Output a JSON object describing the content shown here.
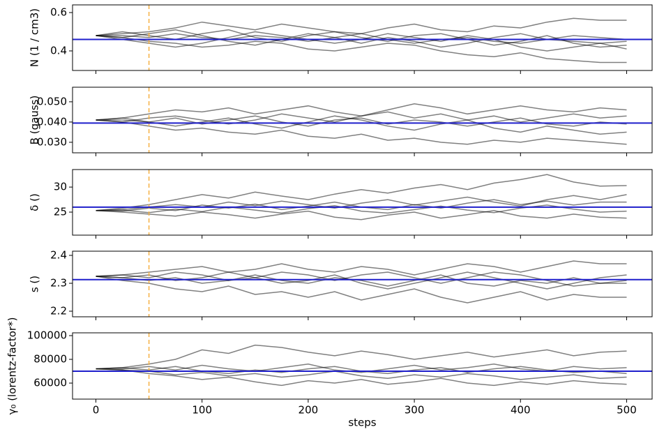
{
  "chart_data": [
    {
      "type": "line",
      "ylabel": "N (1 / cm3)",
      "x": [
        0,
        25,
        50,
        75,
        100,
        125,
        150,
        175,
        200,
        225,
        250,
        275,
        300,
        325,
        350,
        375,
        400,
        425,
        450,
        475,
        500
      ],
      "xlim": [
        -22,
        524
      ],
      "xticks": [
        0,
        100,
        200,
        300,
        400,
        500
      ],
      "xtick_labels": false,
      "ylim": [
        0.298,
        0.64
      ],
      "yticks": [
        0.4,
        0.6
      ],
      "reference_line": {
        "value": 0.46,
        "color": "#1f1fcc"
      },
      "burn_in_line": {
        "value": 50,
        "color": "#f5b041"
      },
      "series": [
        {
          "color": "#000000",
          "values": [
            0.48,
            0.49,
            0.5,
            0.52,
            0.55,
            0.53,
            0.51,
            0.54,
            0.52,
            0.5,
            0.49,
            0.52,
            0.54,
            0.51,
            0.5,
            0.53,
            0.52,
            0.55,
            0.57,
            0.56,
            0.56
          ]
        },
        {
          "color": "#000000",
          "values": [
            0.48,
            0.47,
            0.45,
            0.44,
            0.42,
            0.43,
            0.45,
            0.44,
            0.41,
            0.4,
            0.42,
            0.44,
            0.43,
            0.4,
            0.38,
            0.37,
            0.39,
            0.36,
            0.35,
            0.34,
            0.34
          ]
        },
        {
          "color": "#000000",
          "values": [
            0.48,
            0.48,
            0.47,
            0.49,
            0.47,
            0.46,
            0.48,
            0.47,
            0.45,
            0.47,
            0.49,
            0.46,
            0.44,
            0.46,
            0.47,
            0.45,
            0.44,
            0.46,
            0.45,
            0.44,
            0.45
          ]
        },
        {
          "color": "#000000",
          "values": [
            0.48,
            0.5,
            0.48,
            0.46,
            0.49,
            0.51,
            0.47,
            0.45,
            0.48,
            0.5,
            0.47,
            0.45,
            0.48,
            0.49,
            0.46,
            0.43,
            0.45,
            0.48,
            0.44,
            0.42,
            0.43
          ]
        },
        {
          "color": "#000000",
          "values": [
            0.48,
            0.47,
            0.49,
            0.51,
            0.48,
            0.45,
            0.43,
            0.46,
            0.49,
            0.47,
            0.44,
            0.47,
            0.45,
            0.42,
            0.44,
            0.47,
            0.49,
            0.46,
            0.48,
            0.47,
            0.46
          ]
        },
        {
          "color": "#000000",
          "values": [
            0.48,
            0.46,
            0.44,
            0.42,
            0.44,
            0.47,
            0.5,
            0.48,
            0.46,
            0.44,
            0.46,
            0.49,
            0.47,
            0.45,
            0.48,
            0.46,
            0.42,
            0.4,
            0.42,
            0.44,
            0.41
          ]
        }
      ]
    },
    {
      "type": "line",
      "ylabel": "B (gauss)",
      "x": [
        0,
        25,
        50,
        75,
        100,
        125,
        150,
        175,
        200,
        225,
        250,
        275,
        300,
        325,
        350,
        375,
        400,
        425,
        450,
        475,
        500
      ],
      "xlim": [
        -22,
        524
      ],
      "xticks": [
        0,
        100,
        200,
        300,
        400,
        500
      ],
      "xtick_labels": false,
      "ylim": [
        0.0248,
        0.0572
      ],
      "yticks": [
        {
          "value": 0.03,
          "label": "0.030"
        },
        {
          "value": 0.04,
          "label": "0.040"
        },
        {
          "value": 0.05,
          "label": "0.050"
        }
      ],
      "reference_line": {
        "value": 0.0395,
        "color": "#1f1fcc"
      },
      "burn_in_line": {
        "value": 50,
        "color": "#f5b041"
      },
      "series": [
        {
          "color": "#000000",
          "values": [
            0.041,
            0.042,
            0.044,
            0.046,
            0.045,
            0.047,
            0.044,
            0.046,
            0.048,
            0.045,
            0.043,
            0.046,
            0.049,
            0.047,
            0.044,
            0.046,
            0.048,
            0.046,
            0.045,
            0.047,
            0.046
          ]
        },
        {
          "color": "#000000",
          "values": [
            0.041,
            0.04,
            0.038,
            0.036,
            0.037,
            0.035,
            0.034,
            0.036,
            0.033,
            0.032,
            0.034,
            0.031,
            0.032,
            0.03,
            0.029,
            0.031,
            0.03,
            0.032,
            0.031,
            0.03,
            0.029
          ]
        },
        {
          "color": "#000000",
          "values": [
            0.041,
            0.041,
            0.04,
            0.042,
            0.039,
            0.041,
            0.043,
            0.04,
            0.038,
            0.041,
            0.042,
            0.039,
            0.041,
            0.04,
            0.038,
            0.04,
            0.042,
            0.039,
            0.038,
            0.04,
            0.039
          ]
        },
        {
          "color": "#000000",
          "values": [
            0.041,
            0.042,
            0.04,
            0.038,
            0.04,
            0.042,
            0.039,
            0.037,
            0.04,
            0.043,
            0.041,
            0.038,
            0.036,
            0.039,
            0.041,
            0.037,
            0.035,
            0.038,
            0.036,
            0.034,
            0.035
          ]
        },
        {
          "color": "#000000",
          "values": [
            0.041,
            0.04,
            0.042,
            0.043,
            0.041,
            0.039,
            0.041,
            0.044,
            0.042,
            0.04,
            0.043,
            0.045,
            0.042,
            0.044,
            0.041,
            0.043,
            0.04,
            0.042,
            0.044,
            0.042,
            0.043
          ]
        }
      ]
    },
    {
      "type": "line",
      "ylabel": "δ ()",
      "x": [
        0,
        25,
        50,
        75,
        100,
        125,
        150,
        175,
        200,
        225,
        250,
        275,
        300,
        325,
        350,
        375,
        400,
        425,
        450,
        475,
        500
      ],
      "xlim": [
        -22,
        524
      ],
      "xticks": [
        0,
        100,
        200,
        300,
        400,
        500
      ],
      "xtick_labels": false,
      "ylim": [
        20.4,
        33.5
      ],
      "yticks": [
        25,
        30
      ],
      "reference_line": {
        "value": 26,
        "color": "#1f1fcc"
      },
      "burn_in_line": {
        "value": 50,
        "color": "#f5b041"
      },
      "series": [
        {
          "color": "#000000",
          "values": [
            25.3,
            25.8,
            26.5,
            27.5,
            28.5,
            27.8,
            29,
            28.2,
            27.5,
            28.6,
            29.5,
            28.8,
            29.8,
            30.5,
            29.5,
            30.8,
            31.5,
            32.5,
            31,
            30.2,
            30.3
          ]
        },
        {
          "color": "#000000",
          "values": [
            25.3,
            25,
            24.6,
            24.2,
            25,
            24.5,
            23.8,
            24.6,
            25.2,
            24,
            23.5,
            24.4,
            25,
            23.8,
            24.5,
            25.3,
            24.2,
            23.8,
            24.6,
            24,
            23.8
          ]
        },
        {
          "color": "#000000",
          "values": [
            25.3,
            25.5,
            26,
            26.5,
            26,
            27,
            26.3,
            27.2,
            26.5,
            25.8,
            26.8,
            27.5,
            26.4,
            27.2,
            28,
            27,
            26.2,
            27.5,
            28.3,
            27.5,
            28.5
          ]
        },
        {
          "color": "#000000",
          "values": [
            25.3,
            25.2,
            25.8,
            25.3,
            26.4,
            25.8,
            26.6,
            25.5,
            26.2,
            27,
            26,
            25.5,
            26.5,
            25.8,
            26.8,
            27.5,
            26.5,
            27.2,
            26.4,
            27,
            27
          ]
        },
        {
          "color": "#000000",
          "values": [
            25.3,
            25.4,
            24.9,
            25.6,
            25.1,
            26,
            25.4,
            24.8,
            25.7,
            26.3,
            25.2,
            24.8,
            25.5,
            26.2,
            25.4,
            24.9,
            25.8,
            26.4,
            25.6,
            25,
            25.2
          ]
        }
      ]
    },
    {
      "type": "line",
      "ylabel": "s ()",
      "x": [
        0,
        25,
        50,
        75,
        100,
        125,
        150,
        175,
        200,
        225,
        250,
        275,
        300,
        325,
        350,
        375,
        400,
        425,
        450,
        475,
        500
      ],
      "xlim": [
        -22,
        524
      ],
      "xticks": [
        0,
        100,
        200,
        300,
        400,
        500
      ],
      "xtick_labels": false,
      "ylim": [
        2.18,
        2.415
      ],
      "yticks": [
        2.2,
        2.3,
        2.4
      ],
      "reference_line": {
        "value": 2.313,
        "color": "#1f1fcc"
      },
      "burn_in_line": {
        "value": 50,
        "color": "#f5b041"
      },
      "series": [
        {
          "color": "#000000",
          "values": [
            2.325,
            2.33,
            2.34,
            2.35,
            2.36,
            2.34,
            2.35,
            2.37,
            2.35,
            2.34,
            2.36,
            2.35,
            2.33,
            2.35,
            2.37,
            2.36,
            2.34,
            2.36,
            2.38,
            2.37,
            2.37
          ]
        },
        {
          "color": "#000000",
          "values": [
            2.325,
            2.31,
            2.3,
            2.28,
            2.27,
            2.29,
            2.26,
            2.27,
            2.25,
            2.27,
            2.24,
            2.26,
            2.28,
            2.25,
            2.23,
            2.25,
            2.27,
            2.24,
            2.26,
            2.25,
            2.25
          ]
        },
        {
          "color": "#000000",
          "values": [
            2.325,
            2.32,
            2.31,
            2.32,
            2.3,
            2.31,
            2.33,
            2.31,
            2.3,
            2.32,
            2.31,
            2.29,
            2.31,
            2.33,
            2.3,
            2.29,
            2.31,
            2.3,
            2.32,
            2.3,
            2.31
          ]
        },
        {
          "color": "#000000",
          "values": [
            2.325,
            2.33,
            2.32,
            2.34,
            2.33,
            2.31,
            2.32,
            2.34,
            2.33,
            2.31,
            2.33,
            2.34,
            2.32,
            2.3,
            2.32,
            2.34,
            2.33,
            2.31,
            2.29,
            2.3,
            2.3
          ]
        },
        {
          "color": "#000000",
          "values": [
            2.325,
            2.32,
            2.33,
            2.31,
            2.32,
            2.34,
            2.32,
            2.3,
            2.31,
            2.33,
            2.3,
            2.28,
            2.3,
            2.32,
            2.34,
            2.32,
            2.3,
            2.28,
            2.3,
            2.32,
            2.33
          ]
        }
      ]
    },
    {
      "type": "line",
      "ylabel": "γ₀ (lorentz-factor*)",
      "xlabel": "steps",
      "x": [
        0,
        25,
        50,
        75,
        100,
        125,
        150,
        175,
        200,
        225,
        250,
        275,
        300,
        325,
        350,
        375,
        400,
        425,
        450,
        475,
        500
      ],
      "xlim": [
        -22,
        524
      ],
      "xticks": [
        0,
        100,
        200,
        300,
        400,
        500
      ],
      "xtick_labels": true,
      "ylim": [
        46500,
        102350
      ],
      "yticks": [
        60000,
        80000,
        100000
      ],
      "reference_line": {
        "value": 70000,
        "color": "#1f1fcc"
      },
      "burn_in_line": {
        "value": 50,
        "color": "#f5b041"
      },
      "series": [
        {
          "color": "#000000",
          "values": [
            72000,
            73000,
            76000,
            80000,
            88000,
            85000,
            92000,
            90000,
            86000,
            83000,
            87000,
            84000,
            80000,
            83000,
            86000,
            82000,
            85000,
            88000,
            83000,
            86000,
            87000
          ]
        },
        {
          "color": "#000000",
          "values": [
            72000,
            71000,
            68000,
            66000,
            63000,
            65000,
            61000,
            58000,
            62000,
            60000,
            63000,
            59000,
            61000,
            64000,
            60000,
            58000,
            61000,
            59000,
            62000,
            60000,
            59000
          ]
        },
        {
          "color": "#000000",
          "values": [
            72000,
            72000,
            74000,
            71000,
            75000,
            72000,
            70000,
            73000,
            76000,
            71000,
            69000,
            72000,
            75000,
            71000,
            73000,
            76000,
            72000,
            70000,
            74000,
            72000,
            73000
          ]
        },
        {
          "color": "#000000",
          "values": [
            72000,
            71000,
            70000,
            67000,
            69000,
            66000,
            68000,
            65000,
            67000,
            70000,
            66000,
            64000,
            67000,
            65000,
            68000,
            66000,
            63000,
            65000,
            67000,
            64000,
            65000
          ]
        },
        {
          "color": "#000000",
          "values": [
            72000,
            73000,
            71000,
            74000,
            70000,
            68000,
            71000,
            69000,
            72000,
            74000,
            70000,
            68000,
            71000,
            73000,
            69000,
            72000,
            74000,
            71000,
            69000,
            70000,
            68000
          ]
        }
      ]
    }
  ]
}
